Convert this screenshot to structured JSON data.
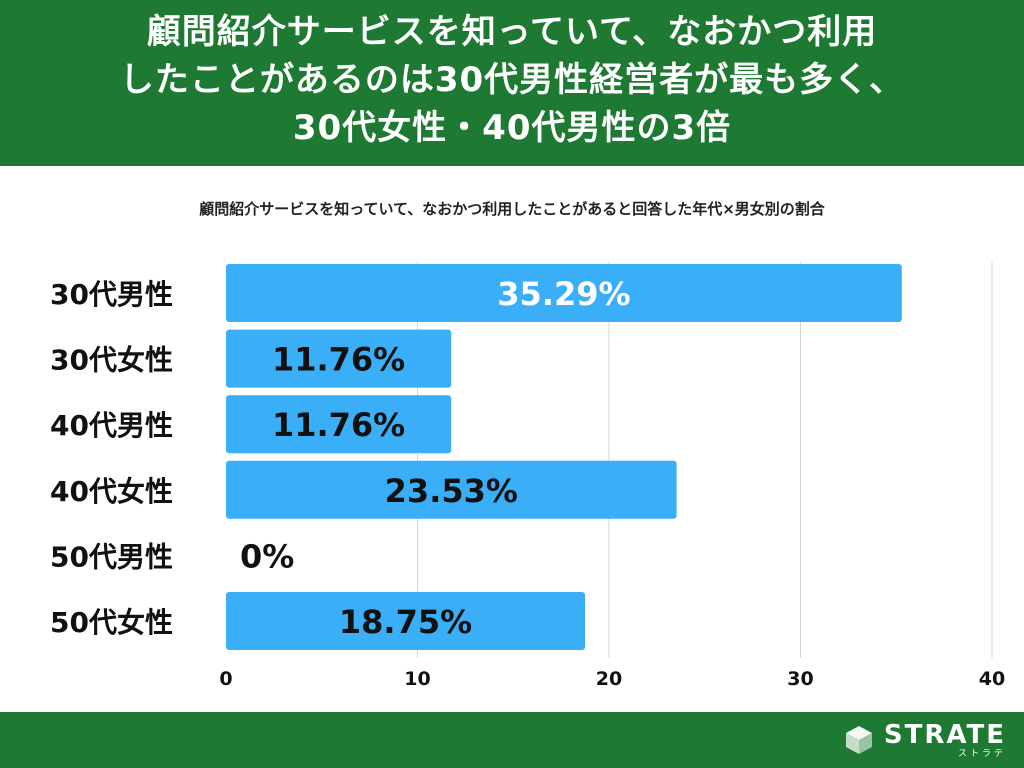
{
  "header": {
    "title_lines": [
      "顧問紹介サービスを知っていて、なおかつ利用",
      "したことがあるのは30代男性経営者が最も多く、",
      "30代女性・40代男性の3倍"
    ]
  },
  "chart_data": {
    "type": "bar",
    "orientation": "horizontal",
    "title": "顧問紹介サービスを知っていて、なおかつ利用したことがあると回答した年代×男女別の割合",
    "categories": [
      "30代男性",
      "30代女性",
      "40代男性",
      "40代女性",
      "50代男性",
      "50代女性"
    ],
    "values": [
      35.29,
      11.76,
      11.76,
      23.53,
      0,
      18.75
    ],
    "data_labels": [
      "35.29%",
      "11.76%",
      "11.76%",
      "23.53%",
      "0%",
      "18.75%"
    ],
    "xlim": [
      0,
      40
    ],
    "xticks": [
      0,
      10,
      20,
      30,
      40
    ],
    "grid": true,
    "colors": {
      "bar": "#3aaff7",
      "label_on_long_bar": "#ffffff",
      "label_default": "#111111",
      "gridline": "#d6d6d6"
    }
  },
  "colors": {
    "brand_green": "#1e7a33"
  },
  "footer": {
    "logo_text": "STRATE",
    "logo_kana": "ストラテ"
  }
}
